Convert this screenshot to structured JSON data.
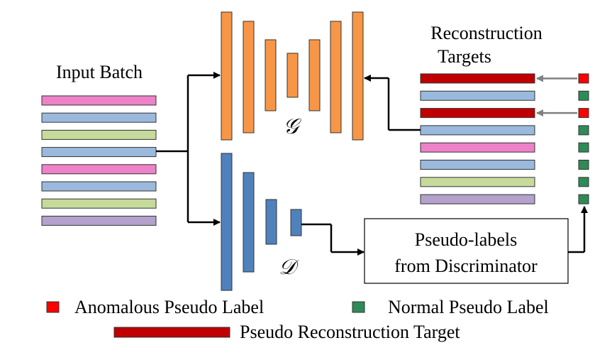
{
  "labels": {
    "input_batch": "Input Batch",
    "recon_line1": "Reconstruction",
    "recon_line2": "Targets",
    "generator_symbol": "𝒢",
    "discriminator_symbol": "𝒟",
    "pseudo_line1": "Pseudo-labels",
    "pseudo_line2": "from Discriminator"
  },
  "legend": {
    "anomalous": "Anomalous Pseudo Label",
    "normal": "Normal Pseudo Label",
    "target": "Pseudo Reconstruction Target"
  },
  "colors": {
    "pink": "#ee82c8",
    "blue": "#9ab9dd",
    "green": "#c6da9c",
    "purple": "#b4a1cc",
    "dark_red": "#c00000",
    "anomalous": "#ff0000",
    "normal": "#2e8b57",
    "generator": "#f79646",
    "discriminator": "#4f81bd",
    "arrow_gray": "#808080"
  },
  "input_batch_colors": [
    "pink",
    "blue",
    "green",
    "blue",
    "pink",
    "blue",
    "green",
    "purple"
  ],
  "target_colors": [
    "dark_red",
    "blue",
    "dark_red",
    "blue",
    "pink",
    "blue",
    "green",
    "purple"
  ],
  "pseudo_labels": [
    "anomalous",
    "normal",
    "anomalous",
    "normal",
    "normal",
    "normal",
    "normal",
    "normal"
  ]
}
